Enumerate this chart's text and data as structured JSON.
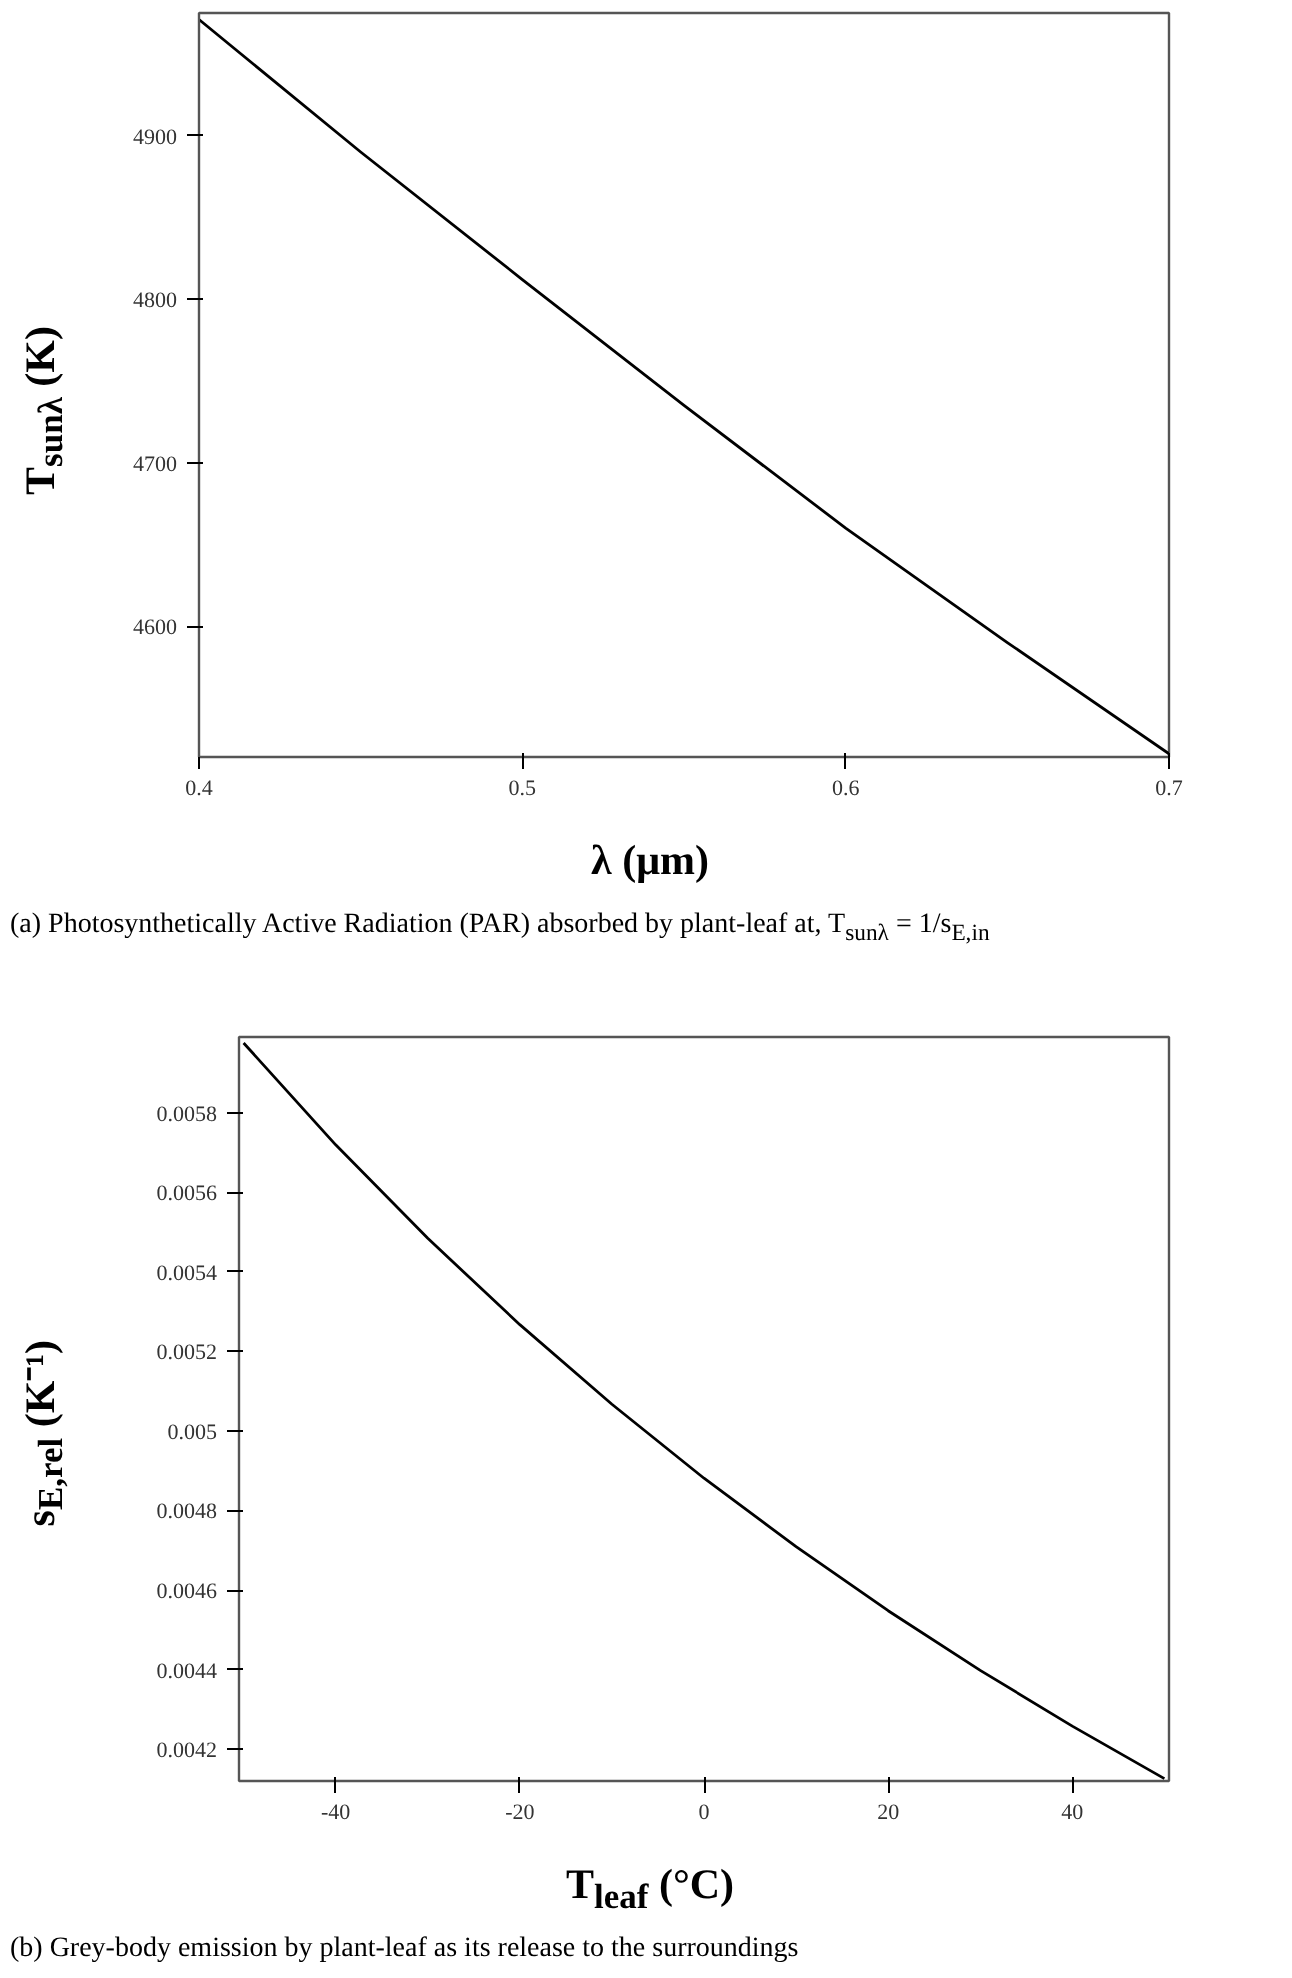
{
  "chart_data": [
    {
      "type": "line",
      "x": [
        0.4,
        0.45,
        0.5,
        0.55,
        0.6,
        0.65,
        0.7
      ],
      "series": [
        {
          "color": "#000000",
          "values": [
            4971,
            4890,
            4812,
            4735,
            4660,
            4590,
            4522
          ]
        }
      ],
      "xlabel": "λ (μm)",
      "ylabel": "T$_{sunλ}$ (K)",
      "xlim": [
        0.4,
        0.7
      ],
      "ylim": [
        4520,
        4975
      ],
      "xticks": [
        0.4,
        0.5,
        0.6,
        0.7
      ],
      "yticks": [
        4600,
        4700,
        4800,
        4900
      ],
      "grid": false,
      "annotations": [
        "(a) Photosynthetically Active Radiation (PAR) absorbed by plant-leaf at, T$_{sunλ}$ = 1/s$_{E,in}$"
      ]
    },
    {
      "type": "line",
      "x": [
        -50,
        -40,
        -30,
        -20,
        -10,
        0,
        10,
        20,
        30,
        40,
        50
      ],
      "series": [
        {
          "color": "#000000",
          "values": [
            0.005975,
            0.005719,
            0.005484,
            0.005267,
            0.005067,
            0.004881,
            0.004709,
            0.004548,
            0.004398,
            0.004258,
            0.004126
          ]
        }
      ],
      "xlabel": "T$_{leaf}$ (°C)",
      "ylabel": "s$_{E,rel}$ (K⁻¹)",
      "xlim": [
        -50.5,
        50.5
      ],
      "ylim": [
        0.00412,
        0.00599
      ],
      "xticks": [
        -40,
        -20,
        0,
        20,
        40
      ],
      "yticks": [
        0.0042,
        0.0044,
        0.0046,
        0.0048,
        0.005,
        0.0052,
        0.0054,
        0.0056,
        0.0058
      ],
      "grid": false,
      "annotations": [
        "(b) Grey-body emission by plant-leaf as its release to the surroundings"
      ]
    }
  ]
}
